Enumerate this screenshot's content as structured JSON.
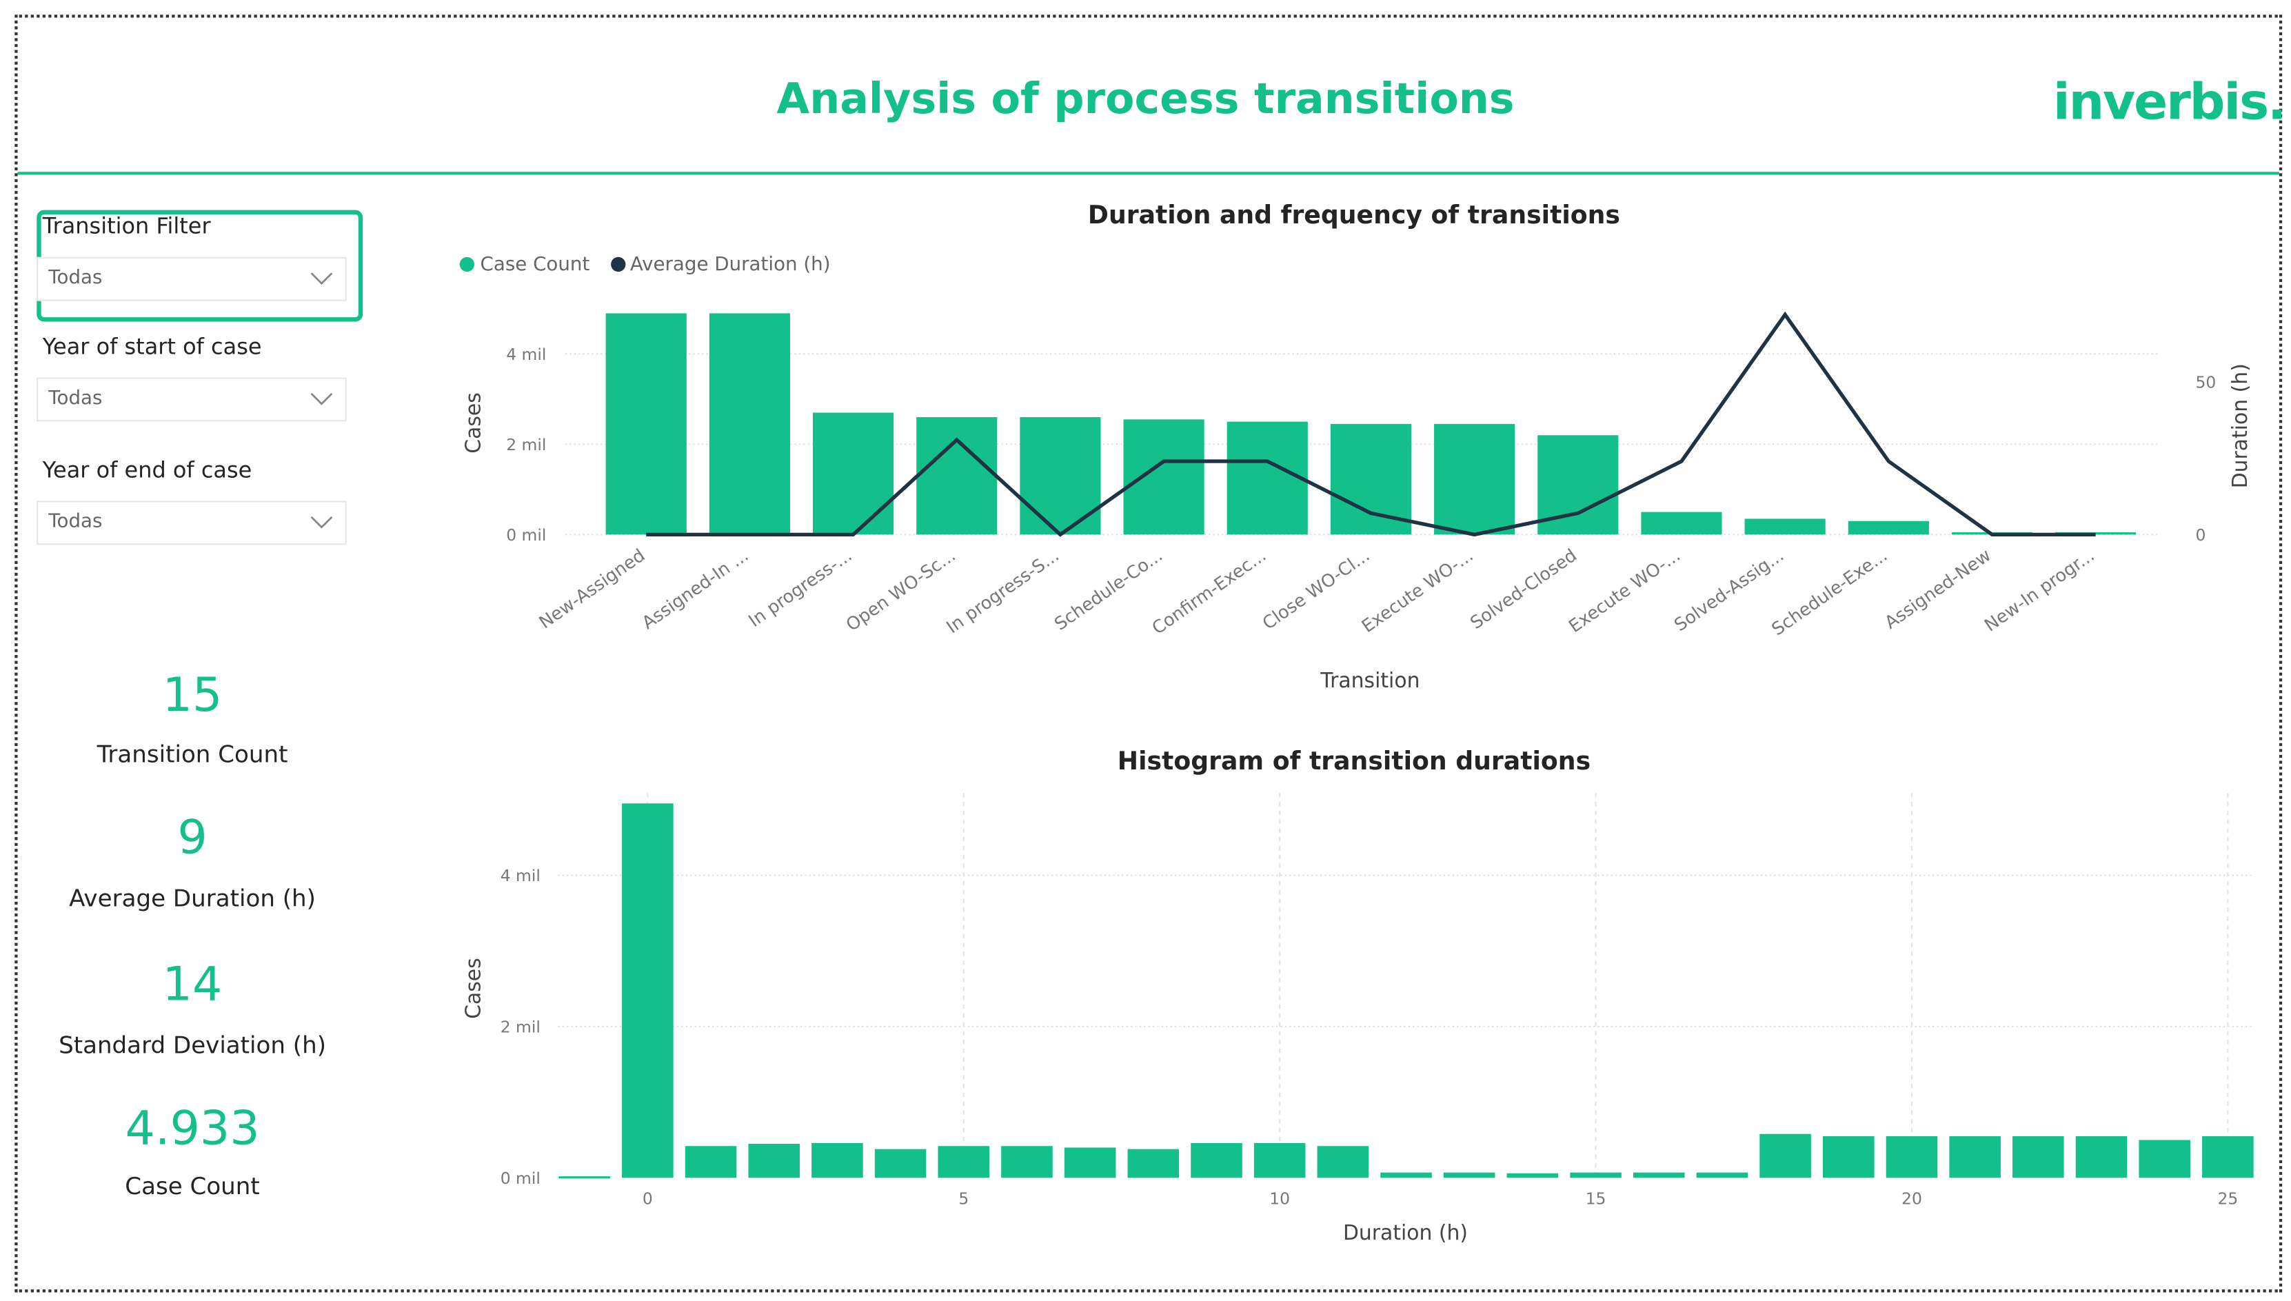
{
  "header": {
    "title": "Analysis of process transitions",
    "logo": "inverbis."
  },
  "colors": {
    "accent": "#13c08b",
    "line": "#1f3344"
  },
  "filters": [
    {
      "label": "Transition Filter",
      "value": "Todas",
      "highlighted": true
    },
    {
      "label": "Year of start of case",
      "value": "Todas"
    },
    {
      "label": "Year of end of case",
      "value": "Todas"
    }
  ],
  "kpis": [
    {
      "value": "15",
      "label": "Transition Count"
    },
    {
      "value": "9",
      "label": "Average Duration (h)"
    },
    {
      "value": "14",
      "label": "Standard Deviation (h)"
    },
    {
      "value": "4.933",
      "label": "Case Count"
    }
  ],
  "chart_data": [
    {
      "type": "bar+line",
      "title": "Duration and frequency of transitions",
      "xlabel": "Transition",
      "ylabel": "Cases",
      "y2label": "Duration (h)",
      "legend": {
        "position": "top-left",
        "entries": [
          "Case Count",
          "Average Duration (h)"
        ]
      },
      "categories": [
        "New-Assigned",
        "Assigned-In ...",
        "In progress-...",
        "Open WO-Sc...",
        "In progress-S...",
        "Schedule-Co...",
        "Confirm-Exec...",
        "Close WO-Cl...",
        "Execute WO-...",
        "Solved-Closed",
        "Execute WO-...",
        "Solved-Assig...",
        "Schedule-Exe...",
        "Assigned-New",
        "New-In progr..."
      ],
      "series": [
        {
          "name": "Case Count",
          "axis": "left",
          "unit": "mil",
          "values": [
            4.9,
            4.9,
            2.7,
            2.6,
            2.6,
            2.55,
            2.5,
            2.45,
            2.45,
            2.2,
            0.5,
            0.35,
            0.3,
            0.05,
            0.05
          ]
        },
        {
          "name": "Average Duration (h)",
          "axis": "right",
          "values": [
            0,
            0,
            0,
            31,
            0,
            24,
            24,
            7,
            0,
            7,
            24,
            72,
            24,
            0,
            0
          ]
        }
      ],
      "yticks": [
        "0 mil",
        "2 mil",
        "4 mil"
      ],
      "ylim": [
        0,
        4.9
      ],
      "y2ticks": [
        "0",
        "50"
      ],
      "y2lim": [
        0,
        72
      ],
      "grid": true
    },
    {
      "type": "bar",
      "title": "Histogram of transition durations",
      "xlabel": "Duration (h)",
      "ylabel": "Cases",
      "x": [
        -1,
        0,
        1,
        2,
        3,
        4,
        5,
        6,
        7,
        8,
        9,
        10,
        11,
        12,
        13,
        14,
        15,
        16,
        17,
        18,
        19,
        20,
        21,
        22,
        23,
        24,
        25
      ],
      "values": [
        0.02,
        4.95,
        0.42,
        0.45,
        0.46,
        0.38,
        0.42,
        0.42,
        0.4,
        0.38,
        0.46,
        0.46,
        0.42,
        0.07,
        0.07,
        0.06,
        0.07,
        0.07,
        0.07,
        0.58,
        0.55,
        0.55,
        0.55,
        0.55,
        0.55,
        0.5,
        0.55
      ],
      "xticks": [
        "0",
        "5",
        "10",
        "15",
        "20",
        "25"
      ],
      "yticks": [
        "0 mil",
        "2 mil",
        "4 mil"
      ],
      "ylim": [
        0,
        4.95
      ],
      "grid": true
    }
  ]
}
